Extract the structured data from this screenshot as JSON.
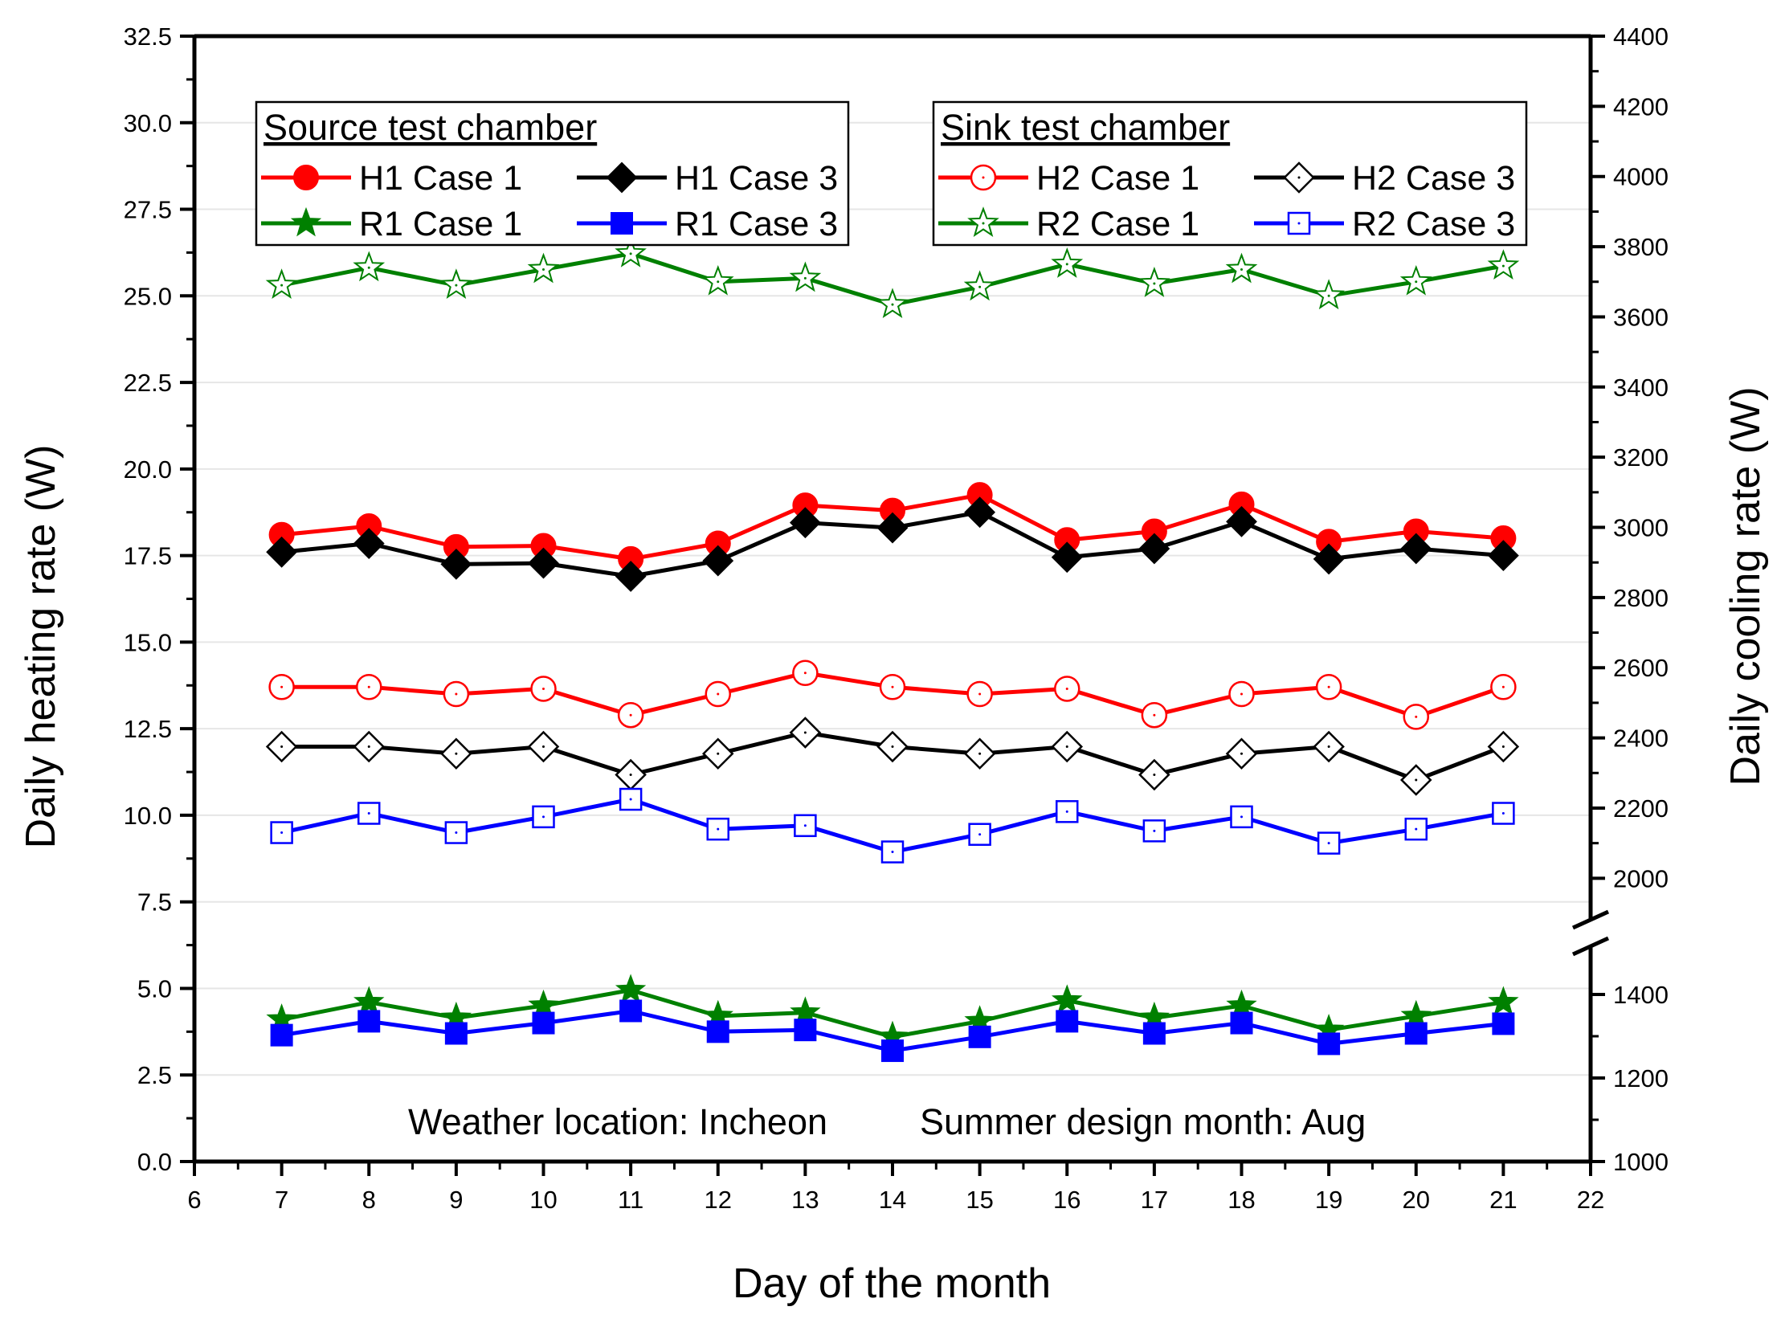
{
  "chart_data": {
    "type": "line",
    "xlabel": "Day of the month",
    "ylabel_left": "Daily heating rate (W)",
    "ylabel_right": "Daily cooling rate (W)",
    "xlim": [
      6,
      22
    ],
    "x_ticks": [
      "6",
      "7",
      "8",
      "9",
      "10",
      "11",
      "12",
      "13",
      "14",
      "15",
      "16",
      "17",
      "18",
      "19",
      "20",
      "21",
      "22"
    ],
    "ylim_left": [
      0,
      32.5
    ],
    "y_ticks_left": [
      "0.0",
      "2.5",
      "5.0",
      "7.5",
      "10.0",
      "12.5",
      "15.0",
      "17.5",
      "20.0",
      "22.5",
      "25.0",
      "27.5",
      "30.0",
      "32.5"
    ],
    "ylim_right_lower": [
      1000,
      1500
    ],
    "ylim_right_upper": [
      1900,
      4400
    ],
    "y_ticks_right": [
      "1000",
      "1200",
      "1400",
      "2000",
      "2200",
      "2400",
      "2600",
      "2800",
      "3000",
      "3200",
      "3400",
      "3600",
      "3800",
      "4000",
      "4200",
      "4400"
    ],
    "right_axis_break": "between 1500 and 1900",
    "grid": "horizontal",
    "x": [
      7,
      8,
      9,
      10,
      11,
      12,
      13,
      14,
      15,
      16,
      17,
      18,
      19,
      20,
      21
    ],
    "series": [
      {
        "name": "H1 Case 1",
        "axis": "left",
        "color": "#ff0000",
        "marker": "circle",
        "filled": true,
        "values": [
          18.1,
          18.35,
          17.75,
          17.78,
          17.4,
          17.85,
          18.95,
          18.8,
          19.25,
          17.95,
          18.2,
          18.98,
          17.9,
          18.2,
          18.0
        ]
      },
      {
        "name": "H1 Case 3",
        "axis": "left",
        "color": "#000000",
        "marker": "diamond",
        "filled": true,
        "values": [
          17.6,
          17.85,
          17.25,
          17.28,
          16.9,
          17.35,
          18.45,
          18.3,
          18.75,
          17.45,
          17.7,
          18.48,
          17.4,
          17.7,
          17.5
        ]
      },
      {
        "name": "R1 Case 1",
        "axis": "left",
        "color": "#008000",
        "marker": "star",
        "filled": true,
        "values": [
          4.1,
          4.6,
          4.15,
          4.5,
          4.95,
          4.2,
          4.3,
          3.6,
          4.05,
          4.65,
          4.15,
          4.5,
          3.8,
          4.2,
          4.6
        ]
      },
      {
        "name": "R1 Case 3",
        "axis": "left",
        "color": "#0000ff",
        "marker": "square",
        "filled": true,
        "values": [
          3.65,
          4.05,
          3.7,
          4.0,
          4.35,
          3.75,
          3.8,
          3.2,
          3.6,
          4.05,
          3.7,
          4.0,
          3.4,
          3.7,
          3.98
        ]
      },
      {
        "name": "H2 Case 1",
        "axis": "right",
        "color": "#ff0000",
        "marker": "circle",
        "filled": false,
        "values": [
          2545,
          2545,
          2525,
          2540,
          2465,
          2525,
          2585,
          2545,
          2525,
          2540,
          2465,
          2525,
          2545,
          2460,
          2545
        ]
      },
      {
        "name": "H2 Case 3",
        "axis": "right",
        "color": "#000000",
        "marker": "diamond",
        "filled": false,
        "values": [
          2375,
          2375,
          2355,
          2375,
          2295,
          2355,
          2415,
          2375,
          2355,
          2375,
          2295,
          2355,
          2375,
          2280,
          2375
        ]
      },
      {
        "name": "R2 Case 1",
        "axis": "right",
        "color": "#008000",
        "marker": "star",
        "filled": false,
        "values": [
          3690,
          3740,
          3690,
          3735,
          3780,
          3700,
          3710,
          3635,
          3685,
          3750,
          3695,
          3735,
          3660,
          3700,
          3745
        ]
      },
      {
        "name": "R2 Case 3",
        "axis": "right",
        "color": "#0000ff",
        "marker": "square",
        "filled": false,
        "values": [
          2130,
          2185,
          2130,
          2175,
          2225,
          2140,
          2150,
          2075,
          2125,
          2190,
          2135,
          2175,
          2100,
          2140,
          2185
        ]
      }
    ],
    "legends": [
      {
        "title": "Source test chamber",
        "entries": [
          "H1 Case 1",
          "H1 Case 3",
          "R1 Case 1",
          "R1 Case 3"
        ]
      },
      {
        "title": "Sink test chamber",
        "entries": [
          "H2 Case 1",
          "H2 Case 3",
          "R2 Case 1",
          "R2 Case 3"
        ]
      }
    ],
    "annotations": [
      "Weather location: Incheon",
      "Summer design month: Aug"
    ]
  }
}
